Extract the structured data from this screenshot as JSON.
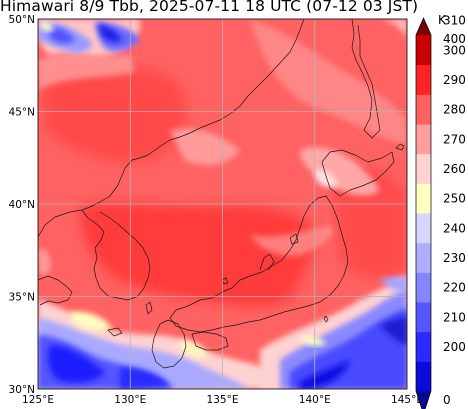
{
  "title": "Himawari 8/9 Tbb, 2025-07-11 18 UTC (07-12 03 JST)",
  "lon_ticks": [
    "125°E",
    "130°E",
    "135°E",
    "140°E",
    "145°E"
  ],
  "lat_ticks": [
    "30°N",
    "35°N",
    "40°N",
    "45°N",
    "50°N"
  ],
  "colorbar": {
    "unit": "K",
    "labels": [
      "0",
      "200",
      "210",
      "220",
      "230",
      "240",
      "250",
      "260",
      "270",
      "280",
      "290",
      "300",
      "310",
      "400"
    ],
    "colors": [
      "#08088f",
      "#0b0bd8",
      "#2a2aff",
      "#5656ff",
      "#8585ff",
      "#afafff",
      "#d5d5ff",
      "#ffffc0",
      "#ffd2d2",
      "#ff9e9e",
      "#ff6060",
      "#ff2424",
      "#c80000",
      "#7a0000"
    ]
  },
  "extent": {
    "lon": [
      125,
      145
    ],
    "lat": [
      30,
      50
    ]
  },
  "colors": {
    "background": "#ff6262",
    "grid": "#b4b4b4",
    "coast": "#1a1a1a"
  }
}
